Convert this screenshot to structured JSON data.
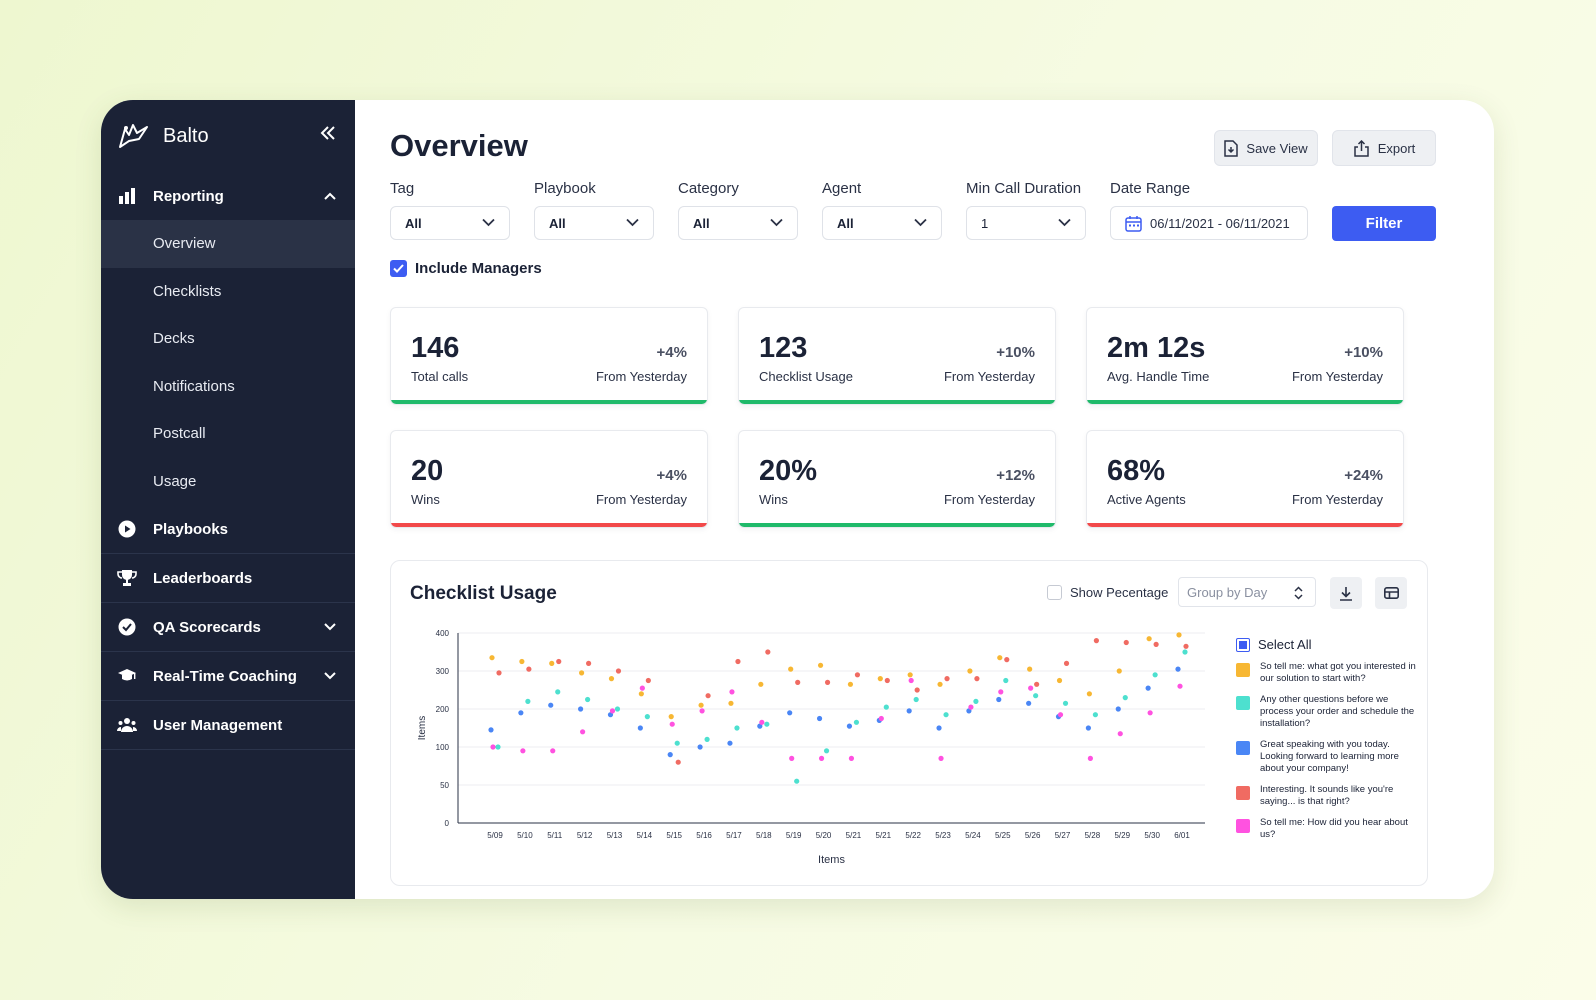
{
  "sidebar": {
    "brand": "Balto",
    "reporting_label": "Reporting",
    "sub_items": [
      "Overview",
      "Checklists",
      "Decks",
      "Notifications",
      "Postcall",
      "Usage"
    ],
    "playbooks_label": "Playbooks",
    "leaderboards_label": "Leaderboards",
    "qa_label": "QA Scorecards",
    "coaching_label": "Real-Time Coaching",
    "users_label": "User Management"
  },
  "header": {
    "title": "Overview",
    "save_view": "Save View",
    "export": "Export"
  },
  "filters": {
    "tag": {
      "label": "Tag",
      "value": "All"
    },
    "playbook": {
      "label": "Playbook",
      "value": "All"
    },
    "category": {
      "label": "Category",
      "value": "All"
    },
    "agent": {
      "label": "Agent",
      "value": "All"
    },
    "min_duration": {
      "label": "Min Call Duration",
      "value": "1"
    },
    "date_range": {
      "label": "Date Range",
      "value": "06/11/2021 - 06/11/2021"
    },
    "filter_button": "Filter",
    "include_managers": "Include Managers"
  },
  "cards": [
    {
      "value": "146",
      "label": "Total calls",
      "change": "+4%",
      "sub": "From Yesterday",
      "color": "#1fba6a"
    },
    {
      "value": "123",
      "label": "Checklist Usage",
      "change": "+10%",
      "sub": "From Yesterday",
      "color": "#1fba6a"
    },
    {
      "value": "2m 12s",
      "label": "Avg. Handle Time",
      "change": "+10%",
      "sub": "From Yesterday",
      "color": "#1fba6a"
    },
    {
      "value": "20",
      "label": "Wins",
      "change": "+4%",
      "sub": "From Yesterday",
      "color": "#f2494a"
    },
    {
      "value": "20%",
      "label": "Wins",
      "change": "+12%",
      "sub": "From Yesterday",
      "color": "#1fba6a"
    },
    {
      "value": "68%",
      "label": "Active Agents",
      "change": "+24%",
      "sub": "From Yesterday",
      "color": "#f2494a"
    }
  ],
  "checklist_panel": {
    "title": "Checklist Usage",
    "show_percentage": "Show Pecentage",
    "group_by": "Group by Day",
    "select_all": "Select All"
  },
  "chart_data": {
    "type": "scatter",
    "title": "Checklist Usage",
    "xlabel": "Items",
    "ylabel": "Items",
    "y_ticks": [
      0,
      50,
      100,
      200,
      300,
      400
    ],
    "categories": [
      "5/09",
      "5/10",
      "5/11",
      "5/12",
      "5/13",
      "5/14",
      "5/15",
      "5/16",
      "5/17",
      "5/18",
      "5/19",
      "5/20",
      "5/21",
      "5/21",
      "5/22",
      "5/23",
      "5/24",
      "5/25",
      "5/26",
      "5/27",
      "5/28",
      "5/29",
      "5/30",
      "6/01"
    ],
    "series": [
      {
        "name": "So tell me: what got you interested in our solution to start with?",
        "color": "#f7b733",
        "values": [
          335,
          325,
          320,
          295,
          280,
          240,
          180,
          210,
          215,
          265,
          305,
          315,
          265,
          280,
          290,
          265,
          300,
          335,
          305,
          275,
          240,
          300,
          385,
          395
        ]
      },
      {
        "name": "Any other questions before we process your order and schedule the installation?",
        "color": "#4de0cf",
        "values": [
          100,
          220,
          245,
          225,
          200,
          180,
          110,
          120,
          150,
          160,
          55,
          95,
          165,
          205,
          225,
          185,
          220,
          275,
          235,
          215,
          185,
          230,
          290,
          350
        ]
      },
      {
        "name": "Great speaking with you today. Looking forward to learning more about your company!",
        "color": "#4a86f5",
        "values": [
          145,
          190,
          210,
          200,
          185,
          150,
          90,
          100,
          110,
          155,
          190,
          175,
          155,
          170,
          195,
          150,
          195,
          225,
          215,
          180,
          150,
          200,
          255,
          305
        ]
      },
      {
        "name": "Interesting. It sounds like you're saying... is that right?",
        "color": "#f06b62",
        "values": [
          295,
          305,
          325,
          320,
          300,
          275,
          80,
          235,
          325,
          350,
          270,
          270,
          290,
          275,
          250,
          280,
          280,
          330,
          265,
          320,
          380,
          375,
          370,
          365
        ]
      },
      {
        "name": "So tell me: How did you hear about us?",
        "color": "#ff52e0",
        "values": [
          100,
          95,
          95,
          140,
          195,
          255,
          160,
          195,
          245,
          165,
          85,
          85,
          85,
          175,
          275,
          85,
          205,
          245,
          255,
          185,
          85,
          135,
          190,
          260
        ]
      }
    ]
  }
}
